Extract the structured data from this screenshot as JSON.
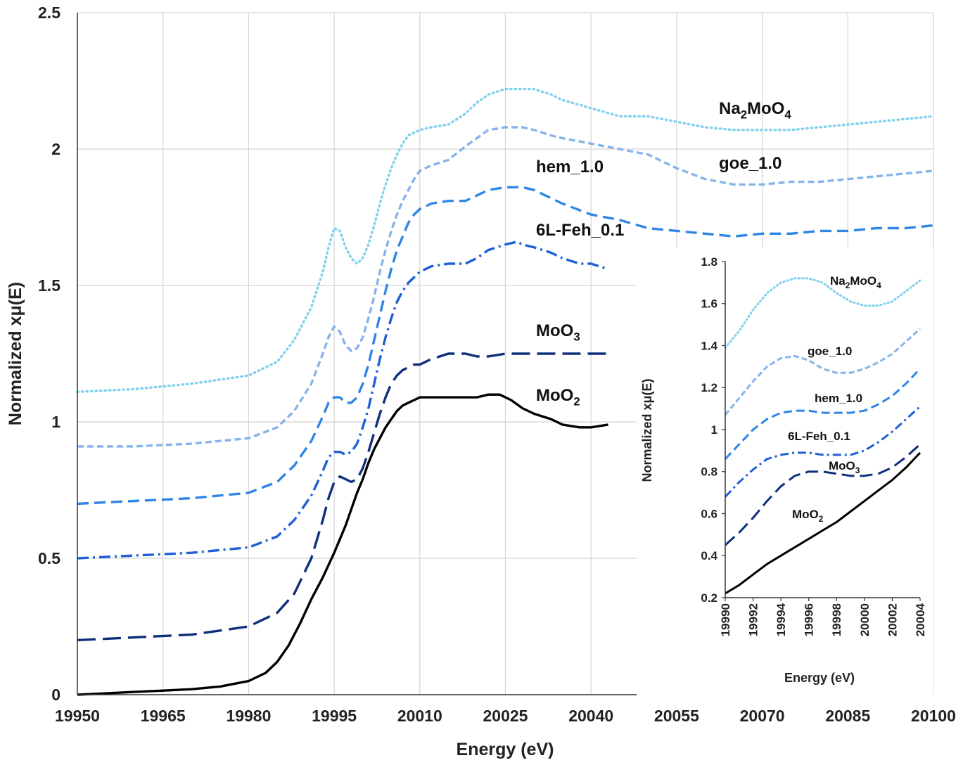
{
  "chart_data": [
    {
      "type": "line",
      "xlabel": "Energy (eV)",
      "ylabel": "Normalized xμ(E)",
      "xlim": [
        19950,
        20100
      ],
      "ylim": [
        0,
        2.5
      ],
      "xticks": [
        "19950",
        "19965",
        "19980",
        "19995",
        "20010",
        "20025",
        "20040",
        "20055",
        "20070",
        "20085",
        "20100"
      ],
      "yticks": [
        "0",
        "0.5",
        "1",
        "1.5",
        "2",
        "2.5"
      ],
      "grid": true,
      "series": [
        {
          "name": "Na2MoO4",
          "label_base": "Na",
          "label_sub1": "2",
          "label_mid": "MoO",
          "label_sub2": "4",
          "color": "#7fd0ee",
          "dash": "dotted",
          "x": [
            19950,
            19960,
            19970,
            19980,
            19985,
            19988,
            19991,
            19993,
            19994,
            19995,
            19996,
            19997,
            19998,
            19999,
            20000,
            20001,
            20002,
            20003,
            20004,
            20005,
            20006,
            20007,
            20008,
            20009,
            20010,
            20012,
            20015,
            20018,
            20020,
            20022,
            20025,
            20028,
            20030,
            20033,
            20035,
            20040,
            20045,
            20050,
            20055,
            20060,
            20065,
            20070,
            20075,
            20080,
            20085,
            20090,
            20095,
            20100
          ],
          "y": [
            1.11,
            1.12,
            1.14,
            1.17,
            1.22,
            1.3,
            1.42,
            1.55,
            1.64,
            1.71,
            1.7,
            1.64,
            1.6,
            1.58,
            1.6,
            1.65,
            1.72,
            1.8,
            1.87,
            1.93,
            1.98,
            2.02,
            2.05,
            2.06,
            2.07,
            2.08,
            2.09,
            2.13,
            2.17,
            2.2,
            2.22,
            2.22,
            2.22,
            2.2,
            2.18,
            2.15,
            2.12,
            2.12,
            2.1,
            2.08,
            2.07,
            2.07,
            2.07,
            2.08,
            2.09,
            2.1,
            2.11,
            2.12
          ]
        },
        {
          "name": "goe_1.0",
          "color": "#86b4ea",
          "dash": "short",
          "x": [
            19950,
            19960,
            19970,
            19980,
            19985,
            19988,
            19991,
            19993,
            19994,
            19995,
            19996,
            19997,
            19998,
            19999,
            20000,
            20001,
            20002,
            20003,
            20004,
            20005,
            20006,
            20007,
            20008,
            20009,
            20010,
            20012,
            20015,
            20018,
            20020,
            20022,
            20025,
            20028,
            20030,
            20033,
            20035,
            20040,
            20045,
            20050,
            20055,
            20060,
            20065,
            20070,
            20075,
            20080,
            20085,
            20090,
            20095,
            20100
          ],
          "y": [
            0.91,
            0.91,
            0.92,
            0.94,
            0.98,
            1.04,
            1.14,
            1.25,
            1.31,
            1.35,
            1.33,
            1.28,
            1.26,
            1.27,
            1.31,
            1.38,
            1.46,
            1.55,
            1.63,
            1.7,
            1.76,
            1.81,
            1.85,
            1.89,
            1.92,
            1.94,
            1.96,
            2.01,
            2.04,
            2.07,
            2.08,
            2.08,
            2.07,
            2.05,
            2.04,
            2.02,
            2.0,
            1.98,
            1.93,
            1.89,
            1.87,
            1.87,
            1.88,
            1.88,
            1.89,
            1.9,
            1.91,
            1.92
          ]
        },
        {
          "name": "hem_1.0",
          "color": "#2f86e6",
          "dash": "medium",
          "x": [
            19950,
            19960,
            19970,
            19980,
            19985,
            19988,
            19991,
            19993,
            19994,
            19995,
            19996,
            19997,
            19998,
            19999,
            20000,
            20001,
            20002,
            20003,
            20004,
            20005,
            20006,
            20007,
            20008,
            20009,
            20010,
            20012,
            20015,
            20018,
            20020,
            20022,
            20025,
            20028,
            20030,
            20033,
            20035,
            20040,
            20045,
            20050,
            20055,
            20060,
            20065,
            20070,
            20075,
            20080,
            20085,
            20090,
            20095,
            20100
          ],
          "y": [
            0.7,
            0.71,
            0.72,
            0.74,
            0.78,
            0.84,
            0.93,
            1.02,
            1.07,
            1.09,
            1.09,
            1.07,
            1.07,
            1.09,
            1.14,
            1.21,
            1.3,
            1.39,
            1.48,
            1.56,
            1.63,
            1.68,
            1.73,
            1.76,
            1.78,
            1.8,
            1.81,
            1.81,
            1.83,
            1.85,
            1.86,
            1.86,
            1.85,
            1.82,
            1.8,
            1.76,
            1.74,
            1.71,
            1.7,
            1.69,
            1.68,
            1.69,
            1.69,
            1.7,
            1.7,
            1.71,
            1.71,
            1.72
          ]
        },
        {
          "name": "6L-Feh_0.1",
          "color": "#1f5fd8",
          "dash": "dashdot",
          "x": [
            19950,
            19960,
            19970,
            19980,
            19985,
            19988,
            19991,
            19993,
            19994,
            19995,
            19996,
            19997,
            19998,
            19999,
            20000,
            20001,
            20002,
            20003,
            20004,
            20005,
            20006,
            20007,
            20008,
            20009,
            20010,
            20012,
            20015,
            20018,
            20020,
            20022,
            20025,
            20027,
            20028,
            20030,
            20033,
            20035,
            20038,
            20040,
            20043
          ],
          "y": [
            0.5,
            0.51,
            0.52,
            0.54,
            0.58,
            0.64,
            0.73,
            0.82,
            0.87,
            0.89,
            0.89,
            0.88,
            0.89,
            0.92,
            0.98,
            1.05,
            1.14,
            1.23,
            1.31,
            1.38,
            1.44,
            1.48,
            1.51,
            1.53,
            1.55,
            1.57,
            1.58,
            1.58,
            1.6,
            1.63,
            1.65,
            1.66,
            1.65,
            1.64,
            1.62,
            1.6,
            1.58,
            1.58,
            1.56
          ]
        },
        {
          "name": "MoO3",
          "label_base": "MoO",
          "label_sub1": "3",
          "color": "#0f2f7c",
          "dash": "long",
          "x": [
            19950,
            19960,
            19970,
            19980,
            19985,
            19988,
            19991,
            19993,
            19994,
            19995,
            19996,
            19997,
            19998,
            19999,
            20000,
            20001,
            20002,
            20003,
            20004,
            20005,
            20006,
            20007,
            20008,
            20009,
            20010,
            20012,
            20015,
            20018,
            20020,
            20022,
            20025,
            20028,
            20030,
            20033,
            20035,
            20038,
            20040,
            20043
          ],
          "y": [
            0.2,
            0.21,
            0.22,
            0.25,
            0.3,
            0.37,
            0.5,
            0.64,
            0.72,
            0.78,
            0.8,
            0.79,
            0.78,
            0.79,
            0.83,
            0.89,
            0.96,
            1.03,
            1.09,
            1.14,
            1.17,
            1.19,
            1.2,
            1.21,
            1.21,
            1.23,
            1.25,
            1.25,
            1.24,
            1.24,
            1.25,
            1.25,
            1.25,
            1.25,
            1.25,
            1.25,
            1.25,
            1.25
          ]
        },
        {
          "name": "MoO2",
          "label_base": "MoO",
          "label_sub1": "2",
          "color": "#000000",
          "dash": "solid",
          "x": [
            19950,
            19955,
            19960,
            19965,
            19970,
            19975,
            19980,
            19983,
            19985,
            19987,
            19989,
            19991,
            19993,
            19995,
            19996,
            19997,
            19998,
            19999,
            20000,
            20001,
            20002,
            20003,
            20004,
            20005,
            20006,
            20007,
            20008,
            20009,
            20010,
            20011,
            20012,
            20015,
            20018,
            20020,
            20022,
            20024,
            20026,
            20028,
            20030,
            20033,
            20035,
            20038,
            20040,
            20043
          ],
          "y": [
            0.0,
            0.005,
            0.01,
            0.015,
            0.02,
            0.03,
            0.05,
            0.08,
            0.12,
            0.18,
            0.26,
            0.35,
            0.43,
            0.52,
            0.57,
            0.62,
            0.68,
            0.74,
            0.79,
            0.85,
            0.9,
            0.94,
            0.98,
            1.01,
            1.04,
            1.06,
            1.07,
            1.08,
            1.09,
            1.09,
            1.09,
            1.09,
            1.09,
            1.09,
            1.1,
            1.1,
            1.08,
            1.05,
            1.03,
            1.01,
            0.99,
            0.98,
            0.98,
            0.99
          ]
        }
      ]
    },
    {
      "type": "line",
      "xlabel": "Energy (eV)",
      "ylabel": "Normalized xμ(E)",
      "xlim": [
        19990,
        20004
      ],
      "ylim": [
        0.2,
        1.8
      ],
      "xticks": [
        "19990",
        "19992",
        "19994",
        "19996",
        "19998",
        "20000",
        "20002",
        "20004"
      ],
      "yticks": [
        "0.2",
        "0.4",
        "0.6",
        "0.8",
        "1",
        "1.2",
        "1.4",
        "1.6",
        "1.8"
      ],
      "grid": false,
      "series": [
        {
          "name": "Na2MoO4",
          "label_base": "Na",
          "label_sub1": "2",
          "label_mid": "MoO",
          "label_sub2": "4",
          "color": "#7fd0ee",
          "dash": "dotted",
          "x": [
            19990,
            19991,
            19992,
            19993,
            19994,
            19995,
            19996,
            19997,
            19998,
            19999,
            20000,
            20001,
            20002,
            20003,
            20004
          ],
          "y": [
            1.39,
            1.47,
            1.57,
            1.65,
            1.7,
            1.72,
            1.72,
            1.7,
            1.65,
            1.61,
            1.59,
            1.59,
            1.61,
            1.66,
            1.71
          ]
        },
        {
          "name": "goe_1.0",
          "color": "#86b4ea",
          "dash": "short",
          "x": [
            19990,
            19991,
            19992,
            19993,
            19994,
            19995,
            19996,
            19997,
            19998,
            19999,
            20000,
            20001,
            20002,
            20003,
            20004
          ],
          "y": [
            1.07,
            1.15,
            1.23,
            1.3,
            1.34,
            1.35,
            1.33,
            1.29,
            1.27,
            1.27,
            1.29,
            1.32,
            1.36,
            1.42,
            1.48
          ]
        },
        {
          "name": "hem_1.0",
          "color": "#2f86e6",
          "dash": "medium",
          "x": [
            19990,
            19991,
            19992,
            19993,
            19994,
            19995,
            19996,
            19997,
            19998,
            19999,
            20000,
            20001,
            20002,
            20003,
            20004
          ],
          "y": [
            0.86,
            0.93,
            1.0,
            1.05,
            1.08,
            1.09,
            1.09,
            1.08,
            1.08,
            1.08,
            1.09,
            1.12,
            1.16,
            1.22,
            1.29
          ]
        },
        {
          "name": "6L-Feh_0.1",
          "color": "#1f5fd8",
          "dash": "dashdot",
          "x": [
            19990,
            19991,
            19992,
            19993,
            19994,
            19995,
            19996,
            19997,
            19998,
            19999,
            20000,
            20001,
            20002,
            20003,
            20004
          ],
          "y": [
            0.68,
            0.75,
            0.81,
            0.86,
            0.88,
            0.89,
            0.89,
            0.88,
            0.88,
            0.88,
            0.9,
            0.94,
            0.99,
            1.05,
            1.11
          ]
        },
        {
          "name": "MoO3",
          "label_base": "MoO",
          "label_sub1": "3",
          "color": "#0f2f7c",
          "dash": "long",
          "x": [
            19990,
            19991,
            19992,
            19993,
            19994,
            19995,
            19996,
            19997,
            19998,
            19999,
            20000,
            20001,
            20002,
            20003,
            20004
          ],
          "y": [
            0.45,
            0.51,
            0.58,
            0.66,
            0.73,
            0.78,
            0.8,
            0.8,
            0.79,
            0.78,
            0.78,
            0.79,
            0.82,
            0.87,
            0.93
          ]
        },
        {
          "name": "MoO2",
          "label_base": "MoO",
          "label_sub1": "2",
          "color": "#000000",
          "dash": "solid",
          "x": [
            19990,
            19991,
            19992,
            19993,
            19994,
            19995,
            19996,
            19997,
            19998,
            19999,
            20000,
            20001,
            20002,
            20003,
            20004
          ],
          "y": [
            0.22,
            0.26,
            0.31,
            0.36,
            0.4,
            0.44,
            0.48,
            0.52,
            0.56,
            0.61,
            0.66,
            0.71,
            0.76,
            0.82,
            0.89
          ]
        }
      ]
    }
  ]
}
